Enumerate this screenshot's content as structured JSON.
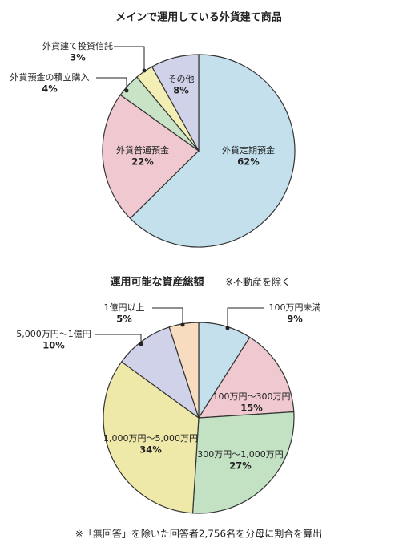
{
  "chart_data": [
    {
      "type": "pie",
      "title": "メインで運用している外貨建て商品",
      "labels": [
        "外貨定期預金",
        "外貨普通預金",
        "外貨預金の積立購入",
        "外貨建て投資信託",
        "その他"
      ],
      "values": [
        62,
        22,
        4,
        3,
        8
      ],
      "value_labels": [
        "62%",
        "22%",
        "4%",
        "3%",
        "8%"
      ],
      "colors": [
        "#c3e0ec",
        "#efc9cf",
        "#c8e3c6",
        "#f3efb4",
        "#cfd2e8"
      ]
    },
    {
      "type": "pie",
      "title": "運用可能な資産総額",
      "subtitle": "※不動産を除く",
      "labels": [
        "100万円未満",
        "100万円～300万円",
        "300万円～1,000万円",
        "1,000万円～5,000万円",
        "5,000万円～1億円",
        "1億円以上"
      ],
      "values": [
        9,
        15,
        27,
        34,
        10,
        5
      ],
      "value_labels": [
        "9%",
        "15%",
        "27%",
        "34%",
        "10%",
        "5%"
      ],
      "colors": [
        "#c3e0ec",
        "#efc9cf",
        "#c3e2c3",
        "#efe9a9",
        "#cfd2e8",
        "#f7dcc0"
      ]
    }
  ],
  "footnote": "※「無回答」を除いた回答者2,756名を分母に割合を算出"
}
